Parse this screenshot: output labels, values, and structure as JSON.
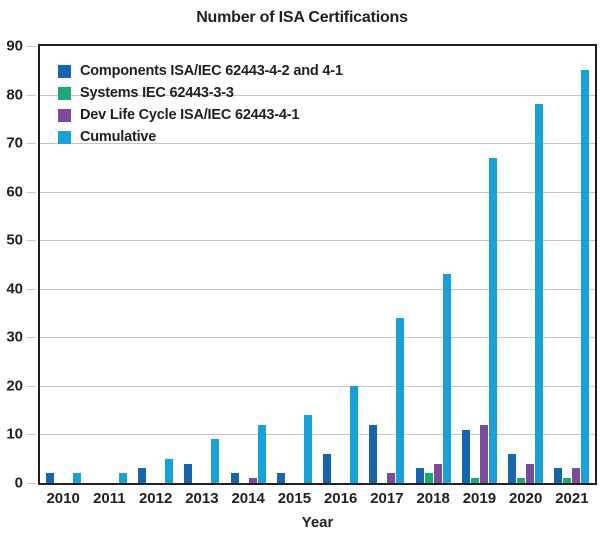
{
  "chart": {
    "title": "Number of ISA Certifications",
    "xlabel": "Year"
  },
  "chart_data": {
    "type": "bar",
    "title": "Number of ISA Certifications",
    "xlabel": "Year",
    "ylabel": "",
    "ylim": [
      0,
      90
    ],
    "ytick_step": 10,
    "grid": "horizontal",
    "legend_position": "inside-top-left",
    "categories": [
      "2010",
      "2011",
      "2012",
      "2013",
      "2014",
      "2015",
      "2016",
      "2017",
      "2018",
      "2019",
      "2020",
      "2021"
    ],
    "series": [
      {
        "name": "Components ISA/IEC 62443-4-2 and 4-1",
        "color": "#1565b0",
        "values": [
          2,
          0,
          3,
          4,
          2,
          2,
          6,
          12,
          3,
          11,
          6,
          3
        ]
      },
      {
        "name": "Systems IEC 62443-3-3",
        "color": "#1ea872",
        "values": [
          0,
          0,
          0,
          0,
          0,
          0,
          0,
          0,
          2,
          1,
          1,
          1
        ]
      },
      {
        "name": "Dev Life Cycle ISA/IEC 62443-4-1",
        "color": "#7b4b9e",
        "values": [
          0,
          0,
          0,
          0,
          1,
          0,
          0,
          2,
          4,
          12,
          4,
          3
        ]
      },
      {
        "name": "Cumulative",
        "color": "#18a0d8",
        "values": [
          2,
          2,
          5,
          9,
          12,
          14,
          20,
          34,
          43,
          67,
          78,
          85
        ]
      }
    ],
    "colors": {
      "text": "#231f20",
      "grid": "#c6c6c6",
      "axis_border": "#231f20",
      "background": "#ffffff"
    }
  }
}
